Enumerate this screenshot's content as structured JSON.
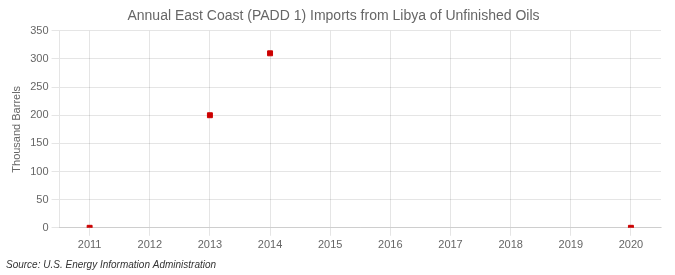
{
  "chart_data": {
    "type": "scatter",
    "title": "Annual East Coast (PADD 1) Imports from Libya of Unfinished Oils",
    "ylabel": "Thousand Barrels",
    "annotations": [
      "Source: U.S. Energy Information Administration"
    ],
    "x": [
      2011,
      2013,
      2014,
      2020
    ],
    "values": [
      0,
      200,
      310,
      0
    ],
    "color": "#cc0000",
    "marker": "square",
    "xlim": [
      2010.5,
      2020.5
    ],
    "xticks": [
      2011,
      2012,
      2013,
      2014,
      2015,
      2016,
      2017,
      2018,
      2019,
      2020
    ],
    "ylim": [
      0,
      350
    ],
    "yticks": [
      0,
      50,
      100,
      150,
      200,
      250,
      300,
      350
    ],
    "grid": true
  }
}
